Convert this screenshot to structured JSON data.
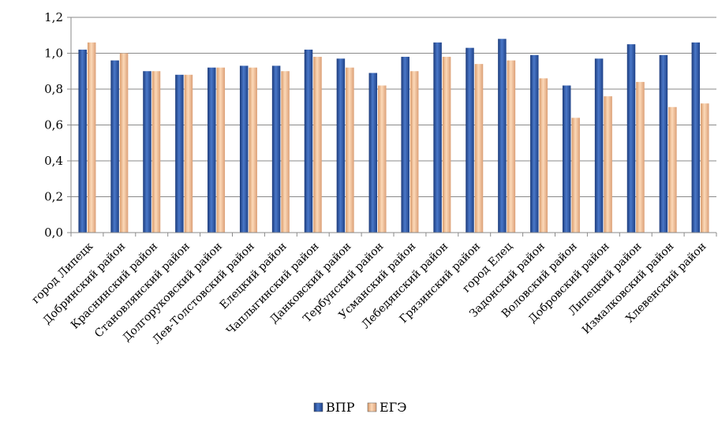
{
  "chart_data": {
    "type": "bar",
    "categories": [
      "город Липецк",
      "Добринский район",
      "Краснинский район",
      "Становлянский район",
      "Долгоруковский район",
      "Лев-Толстовский район",
      "Елецкий район",
      "Чаплыгинский район",
      "Данковский район",
      "Тербунский район",
      "Усманский район",
      "Лебедянский район",
      "Грязинский район",
      "город Елец",
      "Задонский район",
      "Воловский район",
      "Добровский район",
      "Липецкий район",
      "Измалковский район",
      "Хлевенский район"
    ],
    "series": [
      {
        "name": "ВПР",
        "color": "#2e57a6",
        "values": [
          1.02,
          0.96,
          0.9,
          0.88,
          0.92,
          0.93,
          0.93,
          1.02,
          0.97,
          0.89,
          0.98,
          1.06,
          1.03,
          1.08,
          0.99,
          0.82,
          0.97,
          1.05,
          0.99,
          1.06
        ]
      },
      {
        "name": "ЕГЭ",
        "color": "#f6c39b",
        "values": [
          1.06,
          1.0,
          0.9,
          0.88,
          0.92,
          0.92,
          0.9,
          0.98,
          0.92,
          0.82,
          0.9,
          0.98,
          0.94,
          0.96,
          0.86,
          0.64,
          0.76,
          0.84,
          0.7,
          0.72
        ]
      }
    ],
    "yticks": [
      "0,0",
      "0,2",
      "0,4",
      "0,6",
      "0,8",
      "1,0",
      "1,2"
    ],
    "ylim": [
      0,
      1.2
    ],
    "grid": true,
    "legend": "bottom",
    "title": "",
    "xlabel": "",
    "ylabel": ""
  }
}
